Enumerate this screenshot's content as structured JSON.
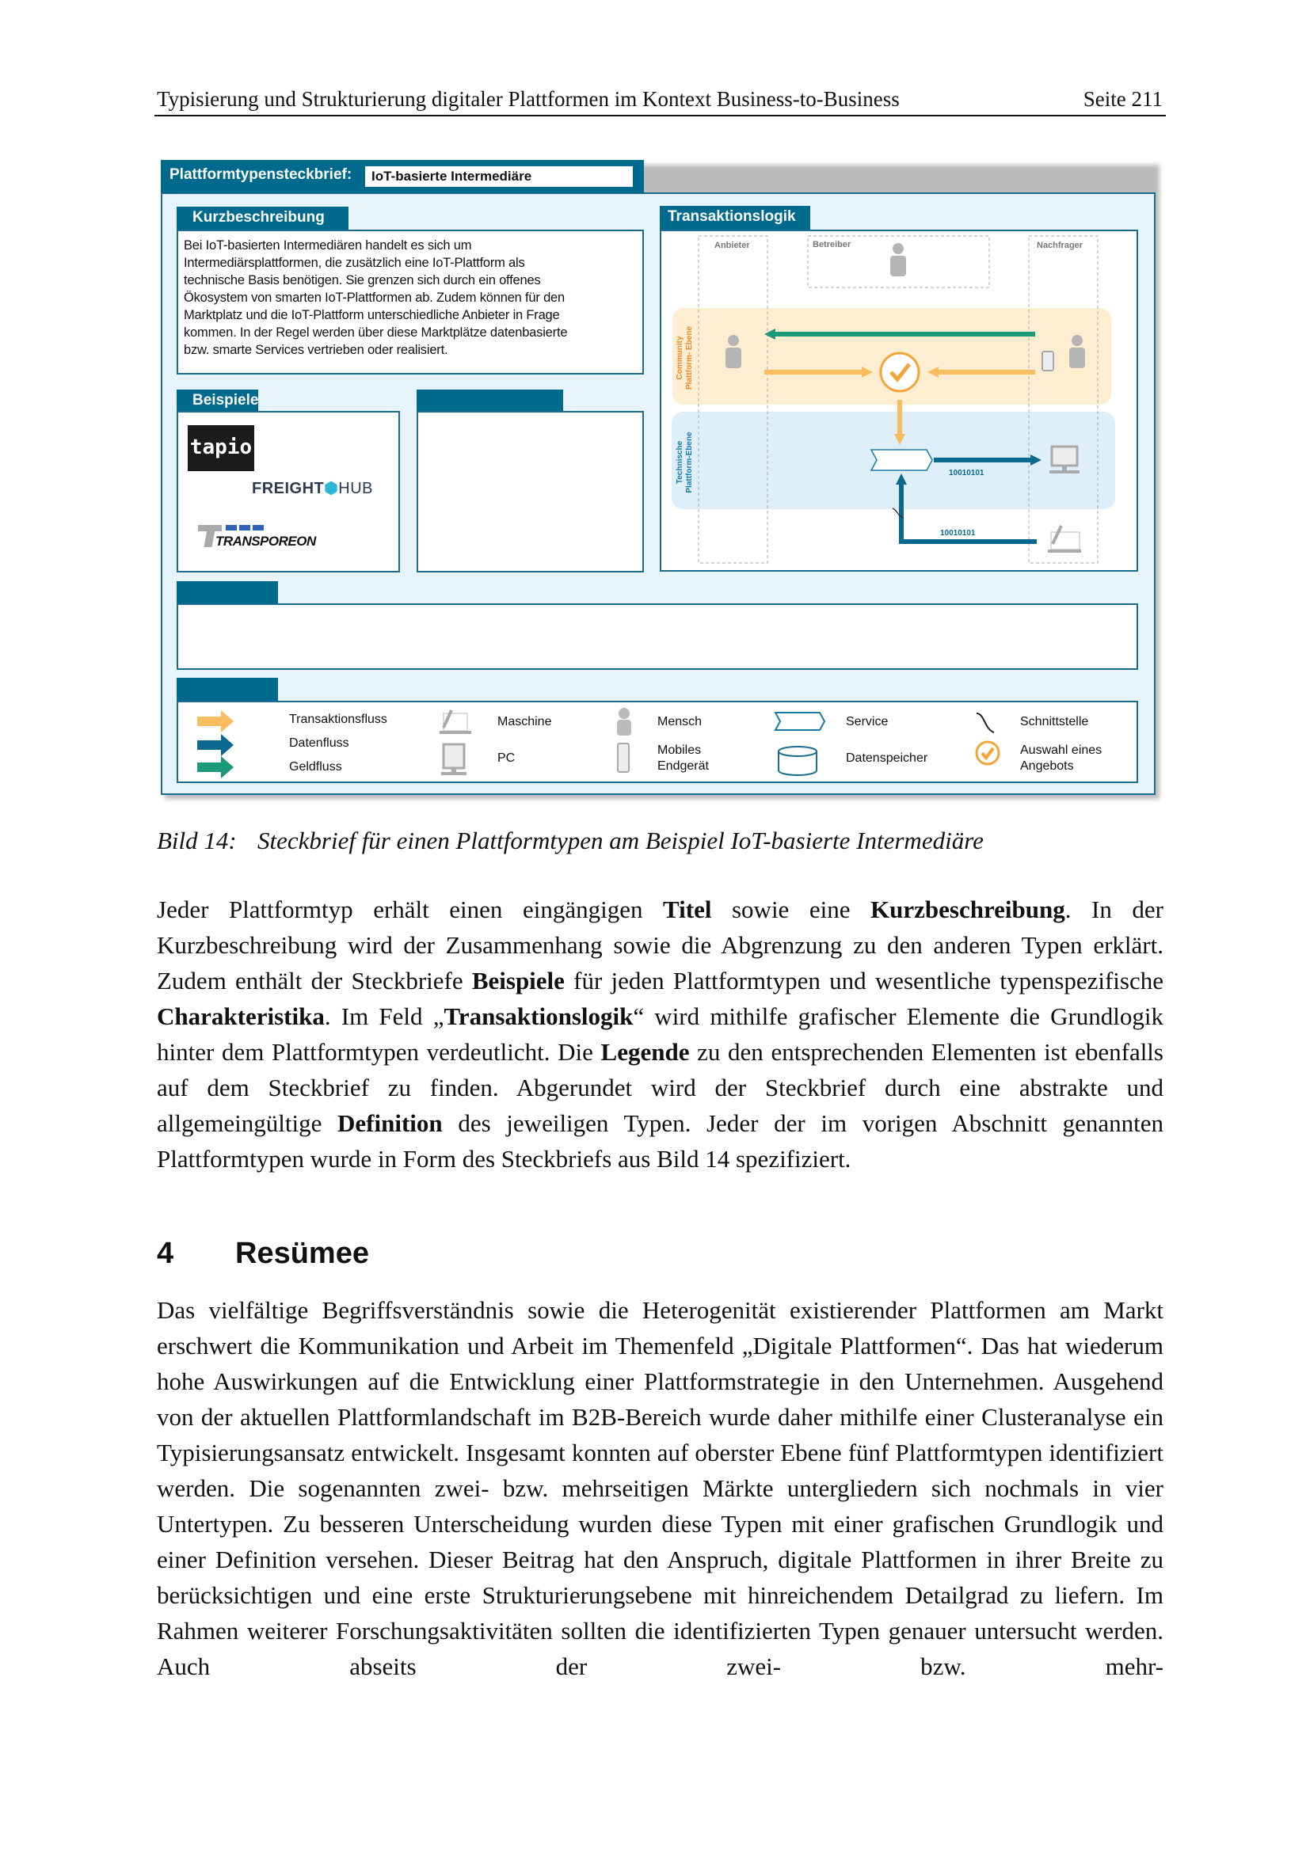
{
  "header": {
    "title": "Typisierung und Strukturierung digitaler Plattformen im Kontext Business-to-Business",
    "page": "Seite 211"
  },
  "figure": {
    "title_label": "Plattformtypensteckbrief:",
    "title_value": "IoT-basierte Intermediäre",
    "kurz": {
      "label": "Kurzbeschreibung",
      "lines": [
        "Bei IoT-basierten Intermediären handelt es sich um",
        "Intermediärsplattformen, die zusätzlich  eine IoT-Plattform als",
        "technische Basis benötigen. Sie grenzen sich durch ein offenes",
        "Ökosystem von smarten IoT-Plattformen ab. Zudem können für den",
        "Marktplatz und die IoT-Plattform unterschiedliche Anbieter in Frage",
        "kommen. In der Regel werden über diese Marktplätze datenbasierte",
        "bzw.  smarte Services vertrieben oder realisiert."
      ]
    },
    "beispiele": {
      "label": "Beispiele",
      "logos": [
        "tapio",
        "FREIGHT HUB",
        "TRANSPOREON"
      ]
    },
    "transaktion": {
      "label": "Transaktionslogik",
      "lanes": {
        "anbieter": "Anbieter",
        "betreiber": "Betreiber",
        "nachfrager": "Nachfrager"
      },
      "community_layer": [
        "Community",
        "Plattform- Ebene"
      ],
      "technical_layer": [
        "Technische",
        "Plattform-Ebene"
      ],
      "data_label_1": "10010101",
      "data_label_2": "10010101"
    },
    "legend": {
      "transaktionsfluss": "Transaktionsfluss",
      "datenfluss": "Datenfluss",
      "geldfluss": "Geldfluss",
      "maschine": "Maschine",
      "pc": "PC",
      "mensch": "Mensch",
      "mobil_1": "Mobiles",
      "mobil_2": "Endgerät",
      "service": "Service",
      "datenspeicher": "Datenspeicher",
      "schnittstelle": "Schnittstelle",
      "auswahl_1": "Auswahl eines",
      "auswahl_2": "Angebots"
    },
    "colors": {
      "primary": "#006a8e",
      "transaction": "#f9bd5f",
      "data": "#0a6a8d",
      "money": "#1a9a78"
    }
  },
  "caption": {
    "label": "Bild 14:",
    "text": "Steckbrief für einen Plattformtypen am Beispiel IoT-basierte Intermediäre"
  },
  "paragraph1": [
    {
      "t": "Jeder Plattformtyp erhält einen eingängigen "
    },
    {
      "t": "Titel",
      "b": true
    },
    {
      "t": " sowie eine "
    },
    {
      "t": "Kurzbeschreibung",
      "b": true
    },
    {
      "t": ". In der Kurzbeschreibung wird der Zusammenhang sowie die Abgrenzung zu den anderen Typen erklärt. Zudem enthält der Steckbriefe "
    },
    {
      "t": "Beispiele",
      "b": true
    },
    {
      "t": " für jeden Plattformtypen und wesentliche typenspezifische "
    },
    {
      "t": "Charakteristika",
      "b": true
    },
    {
      "t": ". Im Feld „"
    },
    {
      "t": "Transaktionslogik",
      "b": true
    },
    {
      "t": "“ wird mithilfe grafischer Elemente die Grundlogik hinter dem Plattformtypen verdeutlicht. Die "
    },
    {
      "t": "Legende",
      "b": true
    },
    {
      "t": " zu den entsprechenden Elementen ist ebenfalls auf dem Steckbrief zu finden. Abgerundet wird der Steckbrief durch eine abstrakte und allgemeingültige "
    },
    {
      "t": "Definition",
      "b": true
    },
    {
      "t": " des jeweiligen Typen. Jeder der im vorigen Abschnitt genannten Plattformtypen wurde in Form des Steckbriefs aus Bild 14 spezifiziert."
    }
  ],
  "section": {
    "number": "4",
    "title": "Resümee"
  },
  "paragraph2": [
    {
      "t": "Das vielfältige Begriffsverständnis sowie die Heterogenität existierender Plattformen am Markt erschwert die Kommunikation und Arbeit im Themenfeld „Digitale Plattformen“. Das hat wiederum hohe Auswirkungen auf die Entwicklung einer Plattformstrategie in den Unternehmen. Ausgehend von der aktuellen Plattformlandschaft im B2B-Bereich wurde daher mithilfe einer Clusteranalyse ein Typisierungsansatz entwickelt. Insgesamt konnten auf oberster Ebene fünf Plattformtypen identifiziert werden. Die sogenannten zwei- bzw. mehrseitigen Märkte untergliedern sich nochmals in vier Untertypen. Zu besseren Unterscheidung wurden diese Typen mit einer grafischen Grundlogik und einer Definition versehen. Dieser Beitrag hat den Anspruch, digitale Plattformen in ihrer Breite zu berücksichtigen und eine erste Strukturierungsebene mit hinreichendem Detailgrad zu liefern. Im Rahmen weiterer Forschungsaktivitäten sollten die identifizierten Typen genauer untersucht werden. Auch abseits der zwei- bzw. mehr-"
    }
  ]
}
